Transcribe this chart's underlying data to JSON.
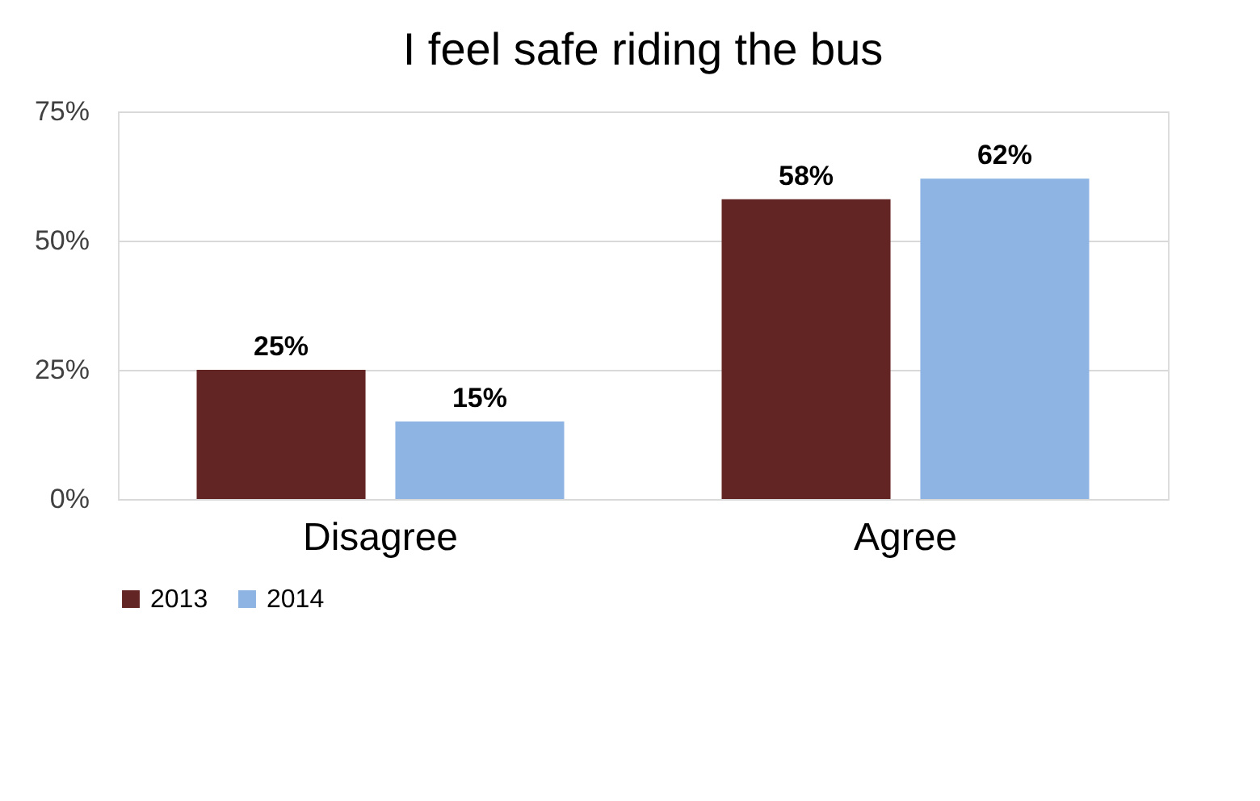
{
  "chart_data": {
    "type": "bar",
    "title": "I feel safe riding the bus",
    "categories": [
      "Disagree",
      "Agree"
    ],
    "series": [
      {
        "name": "2013",
        "color": "#632523",
        "values": [
          25,
          58
        ],
        "value_labels": [
          "25%",
          "58%"
        ]
      },
      {
        "name": "2014",
        "color": "#8db4e2",
        "values": [
          15,
          62
        ],
        "value_labels": [
          "15%",
          "62%"
        ]
      }
    ],
    "ylim": [
      0,
      75
    ],
    "yticks": [
      {
        "value": 0,
        "label": "0%"
      },
      {
        "value": 25,
        "label": "25%"
      },
      {
        "value": 50,
        "label": "50%"
      },
      {
        "value": 75,
        "label": "75%"
      }
    ],
    "grid": "y",
    "legend": "bottom"
  }
}
